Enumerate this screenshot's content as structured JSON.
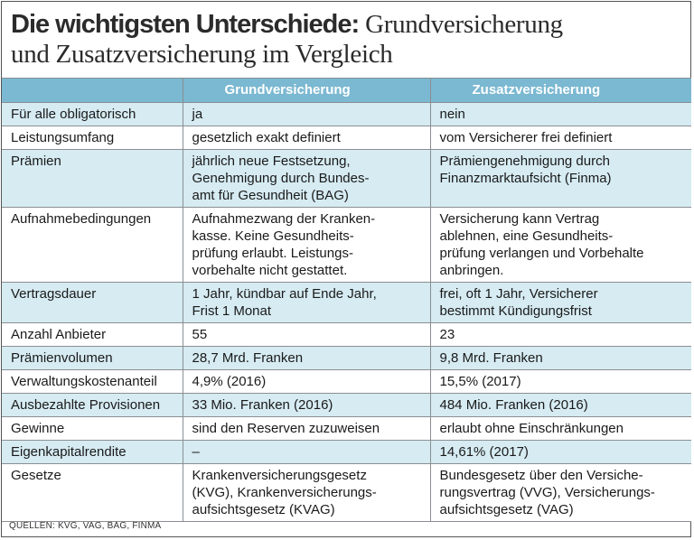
{
  "title": {
    "bold": "Die wichtigsten Unterschiede:",
    "rest_line1": " Grundversicherung",
    "line2": "und Zusatzversicherung im Vergleich"
  },
  "table": {
    "headers": [
      "",
      "Grundversicherung",
      "Zusatzversicherung"
    ],
    "rows": [
      [
        "Für alle obligatorisch",
        "ja",
        "nein"
      ],
      [
        "Leistungsumfang",
        "gesetzlich exakt definiert",
        "vom Versicherer frei definiert"
      ],
      [
        "Prämien",
        "jährlich neue Festsetzung,\nGenehmigung durch Bundes-\namt für Gesundheit (BAG)",
        "Prämiengenehmigung durch\nFinanzmarktaufsicht (Finma)"
      ],
      [
        "Aufnahmebedingungen",
        "Aufnahmezwang der Kranken-\nkasse. Keine Gesundheits-\nprüfung erlaubt. Leistungs-\nvorbehalte nicht gestattet.",
        "Versicherung kann Vertrag\nablehnen, eine Gesundheits-\nprüfung verlangen und Vorbehalte\nanbringen."
      ],
      [
        "Vertragsdauer",
        "1 Jahr, kündbar auf Ende Jahr,\nFrist 1 Monat",
        "frei, oft 1 Jahr, Versicherer\nbestimmt Kündigungsfrist"
      ],
      [
        "Anzahl Anbieter",
        "55",
        "23"
      ],
      [
        "Prämienvolumen",
        "28,7 Mrd. Franken",
        "9,8 Mrd. Franken"
      ],
      [
        "Verwaltungskostenanteil",
        "4,9% (2016)",
        "15,5% (2017)"
      ],
      [
        "Ausbezahlte Provisionen",
        "33 Mio. Franken (2016)",
        "484 Mio. Franken (2016)"
      ],
      [
        "Gewinne",
        "sind den Reserven zuzuweisen",
        "erlaubt ohne Einschränkungen"
      ],
      [
        "Eigenkapitalrendite",
        "–",
        "14,61% (2017)"
      ],
      [
        "Gesetze",
        "Krankenversicherungsgesetz\n(KVG), Krankenversicherungs-\naufsichtsgesetz (KVAG)",
        "Bundesgesetz über den Versiche-\nrungsvertrag (VVG), Versicherungs-\naufsichtsgesetz (VAG)"
      ]
    ]
  },
  "source": "QUELLEN: KVG, VAG, BAG, FINMA",
  "colors": {
    "header_bg": "#7bb8d1",
    "band_bg": "#d6ebf2",
    "border": "#8a8f93"
  }
}
